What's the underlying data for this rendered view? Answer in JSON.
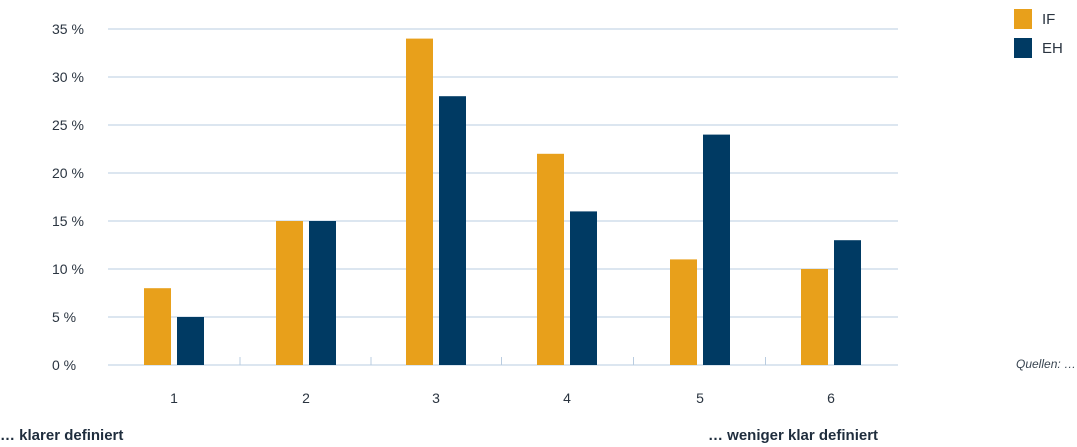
{
  "chart_data": {
    "type": "bar",
    "categories": [
      "1",
      "2",
      "3",
      "4",
      "5",
      "6"
    ],
    "series": [
      {
        "name": "IF",
        "values": [
          8,
          15,
          34,
          22,
          11,
          10
        ],
        "color": "#e8a01b"
      },
      {
        "name": "EH",
        "values": [
          5,
          15,
          28,
          16,
          24,
          13
        ],
        "color": "#003a63"
      }
    ],
    "y_ticks": [
      0,
      5,
      10,
      15,
      20,
      25,
      30,
      35
    ],
    "y_tick_suffix": " %",
    "ylim": [
      0,
      35
    ],
    "grid": true,
    "grid_color": "#b9cce0",
    "legend_position": "top-right",
    "title": "",
    "xlabel": "",
    "ylabel": ""
  },
  "annotations": {
    "left_caption": "… klarer definiert",
    "right_caption": "… weniger klar definiert",
    "source": "Quellen: …"
  }
}
